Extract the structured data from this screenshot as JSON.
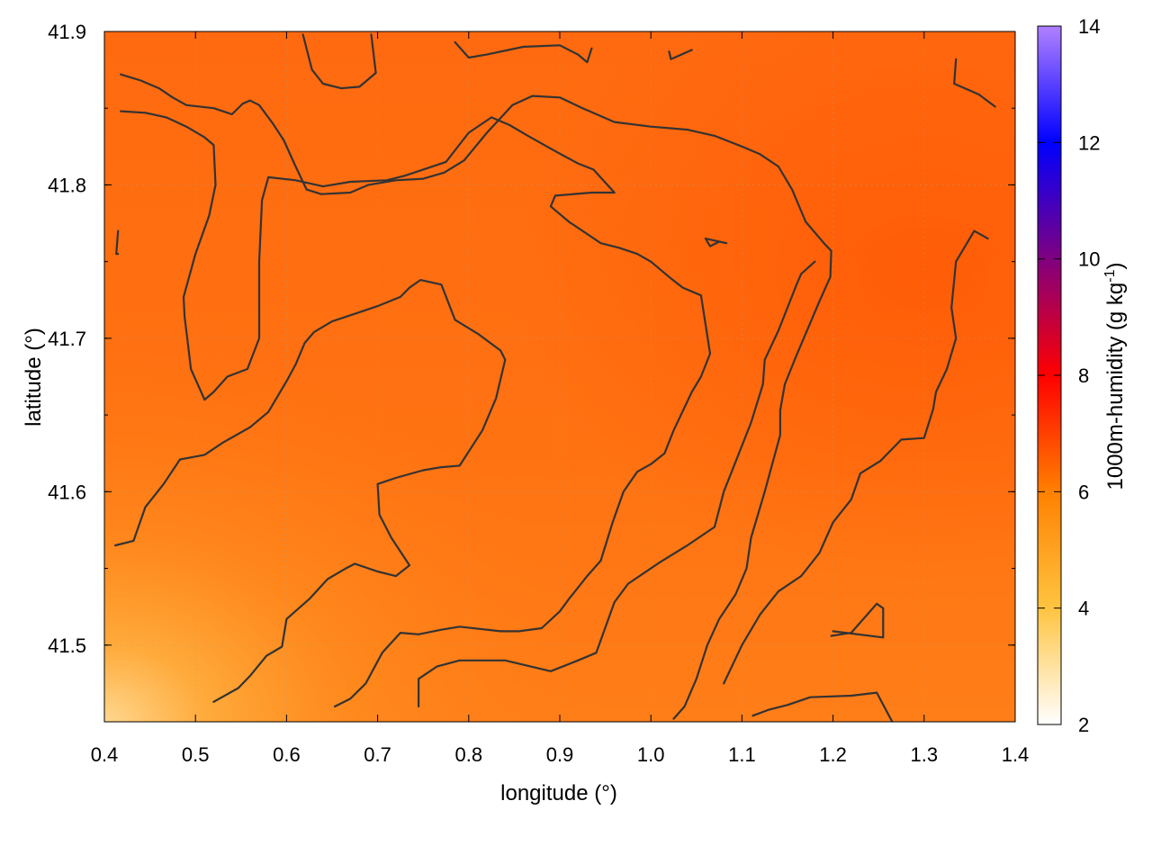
{
  "chart_data": {
    "type": "heatmap",
    "xlabel": "longitude (°)",
    "ylabel": "latitude (°)",
    "colorbar_label": "1000m-humidity (g kg-1)",
    "xlim": [
      0.4,
      1.4
    ],
    "ylim": [
      41.45,
      41.9
    ],
    "xticks": [
      "0.4",
      "0.5",
      "0.6",
      "0.7",
      "0.8",
      "0.9",
      "1.0",
      "1.1",
      "1.2",
      "1.3",
      "1.4"
    ],
    "yticks": [
      "41.5",
      "41.6",
      "41.7",
      "41.8",
      "41.9"
    ],
    "colorbar_range": [
      2,
      14
    ],
    "colorbar_ticks": [
      "2",
      "4",
      "6",
      "8",
      "10",
      "12",
      "14"
    ],
    "colormap_stops": [
      {
        "value": 2,
        "color": "#ffffff"
      },
      {
        "value": 4,
        "color": "#ffc440"
      },
      {
        "value": 6,
        "color": "#ff8000"
      },
      {
        "value": 8,
        "color": "#ff0000"
      },
      {
        "value": 10,
        "color": "#800080"
      },
      {
        "value": 12,
        "color": "#0000ff"
      },
      {
        "value": 14,
        "color": "#b080ff"
      }
    ],
    "field_range_observed": [
      3.5,
      7.0
    ],
    "grid": true,
    "contours": [
      [
        [
          0.418,
          41.872
        ],
        [
          0.44,
          41.868
        ],
        [
          0.46,
          41.863
        ],
        [
          0.475,
          41.857
        ],
        [
          0.49,
          41.852
        ],
        [
          0.52,
          41.85
        ],
        [
          0.54,
          41.846
        ],
        [
          0.552,
          41.853
        ],
        [
          0.56,
          41.855
        ],
        [
          0.57,
          41.852
        ],
        [
          0.585,
          41.84
        ],
        [
          0.597,
          41.829
        ],
        [
          0.61,
          41.812
        ],
        [
          0.622,
          41.797
        ],
        [
          0.638,
          41.794
        ],
        [
          0.67,
          41.795
        ],
        [
          0.69,
          41.8
        ],
        [
          0.72,
          41.803
        ],
        [
          0.75,
          41.804
        ],
        [
          0.773,
          41.808
        ],
        [
          0.795,
          41.816
        ],
        [
          0.82,
          41.834
        ],
        [
          0.848,
          41.852
        ],
        [
          0.87,
          41.858
        ],
        [
          0.9,
          41.857
        ],
        [
          0.925,
          41.85
        ],
        [
          0.96,
          41.841
        ],
        [
          1.0,
          41.838
        ],
        [
          1.04,
          41.836
        ],
        [
          1.07,
          41.832
        ],
        [
          1.1,
          41.825
        ],
        [
          1.12,
          41.82
        ],
        [
          1.14,
          41.812
        ],
        [
          1.155,
          41.797
        ],
        [
          1.17,
          41.776
        ],
        [
          1.19,
          41.762
        ],
        [
          1.198,
          41.757
        ],
        [
          1.197,
          41.74
        ],
        [
          1.185,
          41.724
        ],
        [
          1.175,
          41.71
        ],
        [
          1.16,
          41.689
        ],
        [
          1.147,
          41.67
        ],
        [
          1.142,
          41.653
        ],
        [
          1.142,
          41.637
        ],
        [
          1.125,
          41.6
        ],
        [
          1.11,
          41.57
        ],
        [
          1.105,
          41.55
        ],
        [
          1.093,
          41.533
        ],
        [
          1.075,
          41.517
        ],
        [
          1.062,
          41.5
        ],
        [
          1.05,
          41.478
        ],
        [
          1.037,
          41.46
        ],
        [
          1.025,
          41.452
        ]
      ],
      [
        [
          0.418,
          41.848
        ],
        [
          0.445,
          41.847
        ],
        [
          0.468,
          41.844
        ],
        [
          0.49,
          41.838
        ],
        [
          0.51,
          41.831
        ],
        [
          0.52,
          41.826
        ],
        [
          0.522,
          41.8
        ],
        [
          0.515,
          41.78
        ],
        [
          0.5,
          41.755
        ],
        [
          0.487,
          41.727
        ],
        [
          0.488,
          41.714
        ],
        [
          0.492,
          41.695
        ],
        [
          0.495,
          41.68
        ],
        [
          0.51,
          41.66
        ],
        [
          0.52,
          41.665
        ],
        [
          0.535,
          41.675
        ],
        [
          0.557,
          41.68
        ],
        [
          0.57,
          41.7
        ],
        [
          0.57,
          41.75
        ],
        [
          0.573,
          41.79
        ],
        [
          0.58,
          41.805
        ],
        [
          0.61,
          41.803
        ],
        [
          0.64,
          41.799
        ],
        [
          0.67,
          41.802
        ],
        [
          0.71,
          41.803
        ],
        [
          0.73,
          41.806
        ],
        [
          0.75,
          41.81
        ],
        [
          0.775,
          41.815
        ],
        [
          0.8,
          41.834
        ],
        [
          0.825,
          41.844
        ],
        [
          0.845,
          41.839
        ],
        [
          0.865,
          41.832
        ],
        [
          0.895,
          41.822
        ],
        [
          0.92,
          41.814
        ],
        [
          0.937,
          41.81
        ],
        [
          0.96,
          41.795
        ],
        [
          0.935,
          41.795
        ],
        [
          0.895,
          41.793
        ],
        [
          0.89,
          41.786
        ],
        [
          0.91,
          41.776
        ],
        [
          0.93,
          41.768
        ],
        [
          0.945,
          41.762
        ],
        [
          0.965,
          41.759
        ],
        [
          0.985,
          41.755
        ],
        [
          1.0,
          41.75
        ],
        [
          1.02,
          41.74
        ],
        [
          1.035,
          41.733
        ],
        [
          1.055,
          41.728
        ],
        [
          1.065,
          41.69
        ],
        [
          1.055,
          41.675
        ],
        [
          1.045,
          41.665
        ],
        [
          1.025,
          41.64
        ],
        [
          1.015,
          41.625
        ],
        [
          1.0,
          41.618
        ],
        [
          0.985,
          41.613
        ],
        [
          0.97,
          41.6
        ],
        [
          0.958,
          41.58
        ],
        [
          0.945,
          41.555
        ],
        [
          0.93,
          41.545
        ],
        [
          0.91,
          41.53
        ],
        [
          0.9,
          41.522
        ],
        [
          0.88,
          41.511
        ],
        [
          0.855,
          41.509
        ],
        [
          0.835,
          41.509
        ],
        [
          0.79,
          41.512
        ],
        [
          0.77,
          41.51
        ],
        [
          0.745,
          41.507
        ],
        [
          0.725,
          41.508
        ],
        [
          0.705,
          41.495
        ],
        [
          0.687,
          41.475
        ],
        [
          0.67,
          41.465
        ],
        [
          0.653,
          41.46
        ]
      ],
      [
        [
          0.412,
          41.565
        ],
        [
          0.432,
          41.568
        ],
        [
          0.445,
          41.59
        ],
        [
          0.465,
          41.605
        ],
        [
          0.483,
          41.621
        ],
        [
          0.51,
          41.624
        ],
        [
          0.53,
          41.632
        ],
        [
          0.56,
          41.642
        ],
        [
          0.58,
          41.652
        ],
        [
          0.6,
          41.672
        ],
        [
          0.61,
          41.683
        ],
        [
          0.62,
          41.697
        ],
        [
          0.63,
          41.704
        ],
        [
          0.65,
          41.711
        ],
        [
          0.68,
          41.717
        ],
        [
          0.7,
          41.721
        ],
        [
          0.725,
          41.727
        ],
        [
          0.735,
          41.733
        ],
        [
          0.747,
          41.738
        ],
        [
          0.77,
          41.735
        ],
        [
          0.785,
          41.712
        ],
        [
          0.81,
          41.703
        ],
        [
          0.835,
          41.692
        ],
        [
          0.84,
          41.686
        ],
        [
          0.83,
          41.661
        ],
        [
          0.815,
          41.64
        ],
        [
          0.79,
          41.617
        ],
        [
          0.77,
          41.616
        ],
        [
          0.75,
          41.614
        ],
        [
          0.72,
          41.609
        ],
        [
          0.7,
          41.605
        ],
        [
          0.702,
          41.585
        ],
        [
          0.715,
          41.57
        ],
        [
          0.735,
          41.552
        ],
        [
          0.72,
          41.545
        ],
        [
          0.7,
          41.548
        ],
        [
          0.675,
          41.553
        ],
        [
          0.665,
          41.55
        ],
        [
          0.645,
          41.543
        ],
        [
          0.625,
          41.53
        ],
        [
          0.6,
          41.517
        ],
        [
          0.595,
          41.499
        ],
        [
          0.578,
          41.493
        ],
        [
          0.56,
          41.48
        ],
        [
          0.547,
          41.472
        ],
        [
          0.52,
          41.463
        ]
      ],
      [
        [
          0.745,
          41.46
        ],
        [
          0.745,
          41.478
        ],
        [
          0.765,
          41.486
        ],
        [
          0.79,
          41.49
        ],
        [
          0.84,
          41.49
        ],
        [
          0.89,
          41.483
        ],
        [
          0.92,
          41.49
        ],
        [
          0.94,
          41.495
        ],
        [
          0.96,
          41.528
        ],
        [
          0.975,
          41.54
        ],
        [
          1.01,
          41.554
        ],
        [
          1.04,
          41.565
        ],
        [
          1.07,
          41.577
        ],
        [
          1.08,
          41.6
        ],
        [
          1.09,
          41.615
        ],
        [
          1.11,
          41.645
        ],
        [
          1.123,
          41.67
        ],
        [
          1.125,
          41.686
        ],
        [
          1.14,
          41.705
        ],
        [
          1.16,
          41.735
        ],
        [
          1.165,
          41.742
        ],
        [
          1.18,
          41.75
        ]
      ],
      [
        [
          1.112,
          41.454
        ],
        [
          1.13,
          41.458
        ],
        [
          1.15,
          41.461
        ],
        [
          1.175,
          41.466
        ],
        [
          1.22,
          41.467
        ],
        [
          1.248,
          41.469
        ],
        [
          1.265,
          41.45
        ]
      ],
      [
        [
          1.198,
          41.506
        ],
        [
          1.22,
          41.508
        ],
        [
          1.248,
          41.527
        ],
        [
          1.255,
          41.524
        ],
        [
          1.255,
          41.505
        ],
        [
          1.2,
          41.509
        ]
      ],
      [
        [
          1.065,
          41.76
        ],
        [
          1.075,
          41.763
        ],
        [
          1.083,
          41.762
        ],
        [
          1.06,
          41.765
        ],
        [
          1.065,
          41.76
        ]
      ],
      [
        [
          1.37,
          41.765
        ],
        [
          1.355,
          41.77
        ],
        [
          1.335,
          41.75
        ],
        [
          1.33,
          41.72
        ],
        [
          1.335,
          41.7
        ],
        [
          1.325,
          41.68
        ],
        [
          1.313,
          41.665
        ],
        [
          1.31,
          41.654
        ],
        [
          1.3,
          41.635
        ],
        [
          1.275,
          41.634
        ],
        [
          1.252,
          41.62
        ],
        [
          1.23,
          41.612
        ],
        [
          1.22,
          41.595
        ],
        [
          1.2,
          41.58
        ],
        [
          1.185,
          41.56
        ],
        [
          1.165,
          41.545
        ],
        [
          1.14,
          41.535
        ],
        [
          1.12,
          41.52
        ],
        [
          1.1,
          41.5
        ],
        [
          1.08,
          41.475
        ]
      ],
      [
        [
          1.335,
          41.882
        ],
        [
          1.333,
          41.866
        ],
        [
          1.36,
          41.859
        ],
        [
          1.378,
          41.851
        ]
      ],
      [
        [
          0.618,
          41.898
        ],
        [
          0.628,
          41.875
        ],
        [
          0.64,
          41.866
        ],
        [
          0.66,
          41.863
        ],
        [
          0.68,
          41.864
        ],
        [
          0.698,
          41.873
        ],
        [
          0.693,
          41.898
        ]
      ],
      [
        [
          0.785,
          41.893
        ],
        [
          0.8,
          41.883
        ],
        [
          0.82,
          41.885
        ],
        [
          0.86,
          41.89
        ],
        [
          0.9,
          41.891
        ],
        [
          0.92,
          41.885
        ],
        [
          0.93,
          41.88
        ],
        [
          0.935,
          41.889
        ]
      ],
      [
        [
          1.02,
          41.887
        ],
        [
          1.022,
          41.882
        ],
        [
          1.045,
          41.888
        ]
      ],
      [
        [
          0.415,
          41.755
        ],
        [
          0.413,
          41.755
        ],
        [
          0.415,
          41.77
        ]
      ]
    ]
  }
}
